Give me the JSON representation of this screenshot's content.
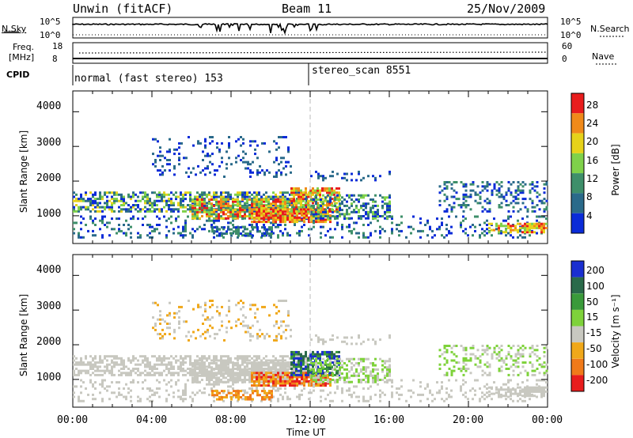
{
  "header": {
    "station": "Unwin (fitACF)",
    "beam": "Beam 11",
    "date": "25/Nov/2009"
  },
  "top_panels": {
    "nsky_label": "N.Sky",
    "nsky_ticks": [
      "10^5",
      "10^0"
    ],
    "nsearch_label": "N.Search",
    "nsearch_ticks": [
      "10^5",
      "10^0"
    ],
    "freq_label_1": "Freq.",
    "freq_label_2": "[MHz]",
    "freq_ticks": [
      "18",
      "8"
    ],
    "nave_label": "Nave",
    "nave_ticks": [
      "60",
      "0"
    ],
    "cpid_label": "CPID",
    "cpid_segments": [
      "normal (fast stereo) 153",
      "stereo_scan 8551"
    ]
  },
  "chart_data": [
    {
      "type": "heatmap",
      "name": "power",
      "ylabel": "Slant Range [km]",
      "ylim": [
        200,
        4600
      ],
      "yticks": [
        "1000",
        "2000",
        "3000",
        "4000"
      ],
      "xlabel": "",
      "xlim": [
        0,
        24
      ],
      "colorbar_label": "Power [dB]",
      "colorbar_ticks": [
        "4",
        "8",
        "12",
        "16",
        "20",
        "24",
        "28"
      ],
      "colors": [
        "#0a2bd8",
        "#2a6a8a",
        "#3e8f6a",
        "#7fd14a",
        "#e6d21a",
        "#f08a1a",
        "#e81d1d"
      ]
    },
    {
      "type": "heatmap",
      "name": "velocity",
      "ylabel": "Slant Range [km]",
      "ylim": [
        200,
        4600
      ],
      "yticks": [
        "1000",
        "2000",
        "3000",
        "4000"
      ],
      "xlabel": "Time UT",
      "xticks": [
        "00:00",
        "04:00",
        "08:00",
        "12:00",
        "16:00",
        "20:00",
        "00:00"
      ],
      "xlim": [
        0,
        24
      ],
      "colorbar_label": "Velocity [m s⁻¹]",
      "colorbar_ticks": [
        "200",
        "100",
        "50",
        "15",
        "-15",
        "-50",
        "-100",
        "-200"
      ],
      "colors": [
        "#1a2fd0",
        "#2a6a4a",
        "#3a9a3a",
        "#7ed23a",
        "#c8c8c0",
        "#f0a81a",
        "#f07a1a",
        "#e81d1d"
      ]
    }
  ]
}
